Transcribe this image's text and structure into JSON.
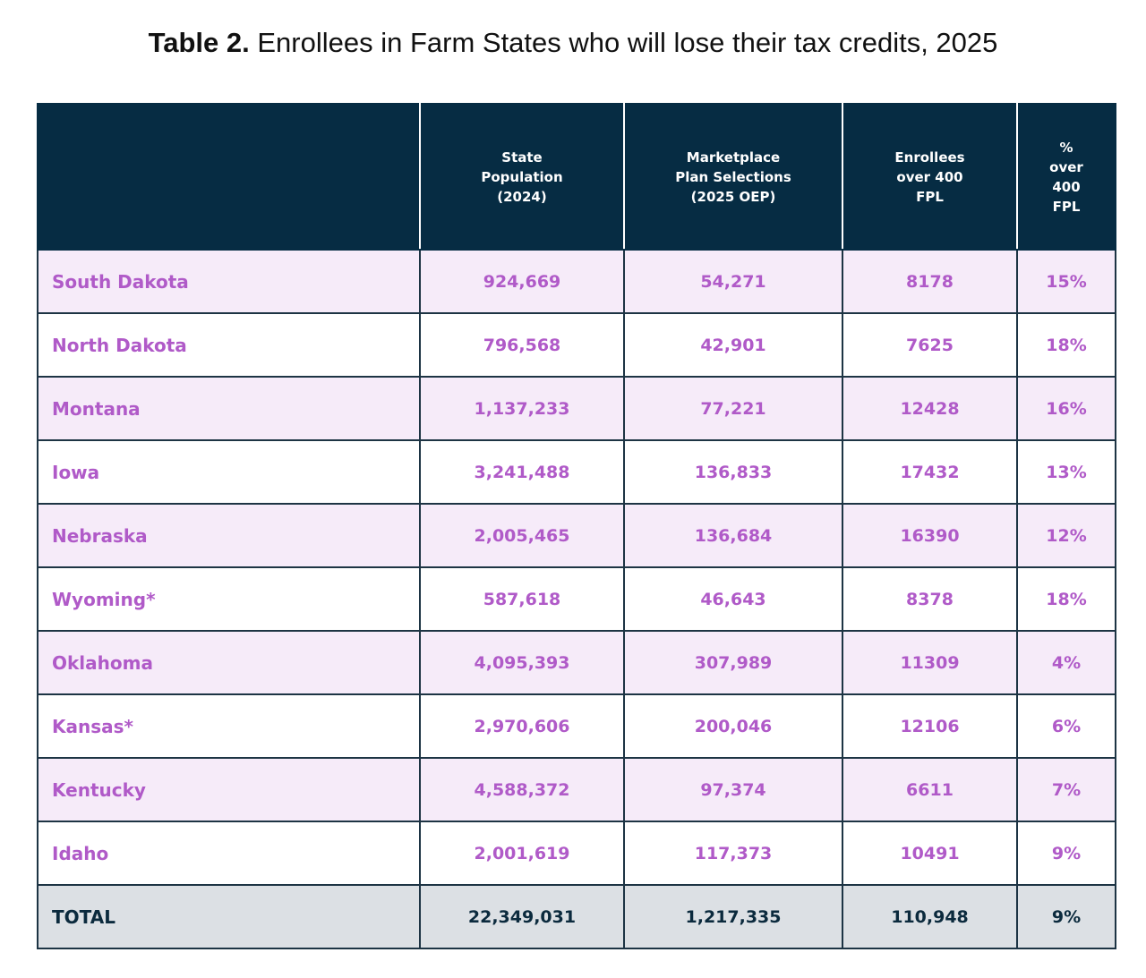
{
  "title": {
    "label": "Table 2.",
    "text": "Enrollees in Farm States who will lose their tax credits, 2025"
  },
  "table": {
    "header": [
      [],
      [
        "State",
        "Population",
        "(2024)"
      ],
      [
        "Marketplace",
        "Plan Selections",
        "(2025 OEP)"
      ],
      [
        "Enrollees",
        "over 400",
        "FPL"
      ],
      [
        "%",
        "over",
        "400",
        "FPL"
      ]
    ],
    "rows": [
      [
        "South Dakota",
        "924,669",
        "54,271",
        "8178",
        "15%"
      ],
      [
        "North Dakota",
        "796,568",
        "42,901",
        "7625",
        "18%"
      ],
      [
        "Montana",
        "1,137,233",
        "77,221",
        "12428",
        "16%"
      ],
      [
        "Iowa",
        "3,241,488",
        "136,833",
        "17432",
        "13%"
      ],
      [
        "Nebraska",
        "2,005,465",
        "136,684",
        "16390",
        "12%"
      ],
      [
        "Wyoming*",
        "587,618",
        "46,643",
        "8378",
        "18%"
      ],
      [
        "Oklahoma",
        "4,095,393",
        "307,989",
        "11309",
        "4%"
      ],
      [
        "Kansas*",
        "2,970,606",
        "200,046",
        "12106",
        "6%"
      ],
      [
        "Kentucky",
        "4,588,372",
        "97,374",
        "6611",
        "7%"
      ],
      [
        "Idaho",
        "2,001,619",
        "117,373",
        "10491",
        "9%"
      ]
    ],
    "total": [
      "TOTAL",
      "22,349,031",
      "1,217,335",
      "110,948",
      "9%"
    ]
  }
}
